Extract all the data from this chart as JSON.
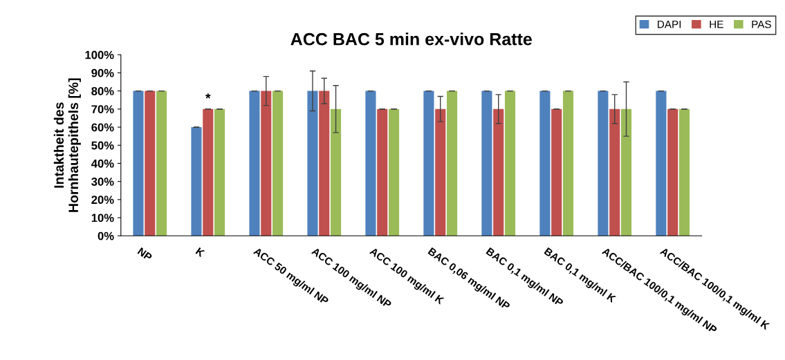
{
  "chart_data": {
    "type": "bar",
    "title": "ACC BAC 5 min ex-vivo Ratte",
    "ylabel": "Intaktheit des\nHornhautepithels [%]",
    "categories": [
      "NP",
      "K",
      "ACC 50 mg/ml NP",
      "ACC 100 mg/ml NP",
      "ACC 100 mg/ml K",
      "BAC 0,06 mg/ml NP",
      "BAC 0,1 mg/ml NP",
      "BAC 0,1 mg/ml K",
      "ACC/BAC 100/0,1 mg/ml NP",
      "ACC/BAC 100/0,1 mg/ml K"
    ],
    "series": [
      {
        "name": "DAPI",
        "color": "#4f81bd",
        "values": [
          80,
          60,
          80,
          80,
          80,
          80,
          80,
          80,
          80,
          80
        ],
        "errors": [
          0,
          0,
          0,
          11,
          0,
          0,
          0,
          0,
          0,
          0
        ]
      },
      {
        "name": "HE",
        "color": "#c0504d",
        "values": [
          80,
          70,
          80,
          80,
          70,
          70,
          70,
          70,
          70,
          70
        ],
        "errors": [
          0,
          0,
          8,
          7,
          0,
          7,
          8,
          0,
          8,
          0
        ]
      },
      {
        "name": "PAS",
        "color": "#9bbb59",
        "values": [
          80,
          70,
          80,
          70,
          70,
          80,
          80,
          80,
          70,
          70
        ],
        "errors": [
          0,
          0,
          0,
          13,
          0,
          0,
          0,
          0,
          15,
          0
        ]
      }
    ],
    "ylim": [
      0,
      100
    ],
    "yticks": [
      {
        "value": 0,
        "label": "0%"
      },
      {
        "value": 10,
        "label": "10%"
      },
      {
        "value": 20,
        "label": "20%"
      },
      {
        "value": 30,
        "label": "30%"
      },
      {
        "value": 40,
        "label": "40%"
      },
      {
        "value": 50,
        "label": "50%"
      },
      {
        "value": 60,
        "label": "60%"
      },
      {
        "value": 70,
        "label": "70%"
      },
      {
        "value": 80,
        "label": "80%"
      },
      {
        "value": 90,
        "label": "90%"
      },
      {
        "value": 100,
        "label": "100%"
      }
    ],
    "annotations": [
      "*"
    ],
    "grid": false,
    "legend": "top right"
  }
}
